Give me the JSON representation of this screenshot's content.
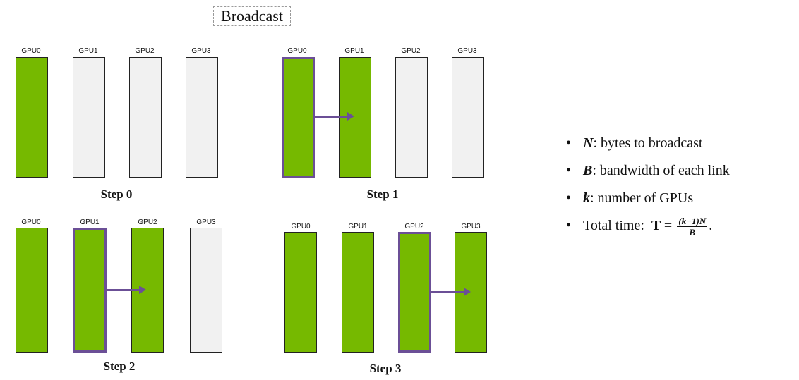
{
  "title": "Broadcast",
  "gpu_names": [
    "GPU0",
    "GPU1",
    "GPU2",
    "GPU3"
  ],
  "steps": [
    {
      "label": "Step 0",
      "filled": [
        true,
        false,
        false,
        false
      ],
      "active": [],
      "arrow_from": null
    },
    {
      "label": "Step 1",
      "filled": [
        true,
        true,
        false,
        false
      ],
      "active": [
        0
      ],
      "arrow_from": 0
    },
    {
      "label": "Step 2",
      "filled": [
        true,
        true,
        true,
        false
      ],
      "active": [
        1
      ],
      "arrow_from": 1
    },
    {
      "label": "Step 3",
      "filled": [
        true,
        true,
        true,
        true
      ],
      "active": [
        2
      ],
      "arrow_from": 2
    }
  ],
  "bullets": [
    {
      "var": "N",
      "text": ": bytes to broadcast"
    },
    {
      "var": "B",
      "text": ": bandwidth of each link"
    },
    {
      "var": "k",
      "text": ": number of GPUs"
    }
  ],
  "total_time": {
    "prefix": "Total time:  ",
    "lhs": "T = ",
    "numerator": "(k−1)N",
    "denominator": "B",
    "suffix": "."
  },
  "colors": {
    "filled": "#76b900",
    "empty": "#f1f1f1",
    "active_border": "#6b4f96",
    "arrow": "#6b4f96"
  }
}
